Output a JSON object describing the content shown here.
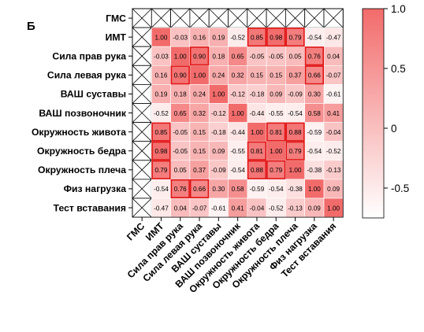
{
  "panel_label": "Б",
  "chart_data": {
    "type": "heatmap",
    "title": "",
    "xlabel": "",
    "ylabel": "",
    "row_labels": [
      "ГМС",
      "ИМТ",
      "Сила прав рука",
      "Сила левая рука",
      "ВАШ суставы",
      "ВАШ позвоночник",
      "Окружность живота",
      "Окружность бедра",
      "Окружность плеча",
      "Физ нагрузка",
      "Тест вставания"
    ],
    "col_labels": [
      "ГМС",
      "ИМТ",
      "Сила прав рука",
      "Сила левая рука",
      "ВАШ суставы",
      "ВАШ позвоночник",
      "Окружность живота",
      "Окружность бедра",
      "Окружность плеча",
      "Физ нагрузка",
      "Тест вставания"
    ],
    "values": [
      [
        null,
        null,
        null,
        null,
        null,
        null,
        null,
        null,
        null,
        null,
        null
      ],
      [
        null,
        1.0,
        -0.03,
        0.16,
        0.19,
        -0.52,
        0.85,
        0.98,
        0.79,
        -0.54,
        -0.47
      ],
      [
        null,
        -0.03,
        1.0,
        0.9,
        0.18,
        0.65,
        -0.05,
        -0.05,
        0.05,
        0.76,
        0.04
      ],
      [
        null,
        0.16,
        0.9,
        1.0,
        0.24,
        0.32,
        0.15,
        0.15,
        0.37,
        0.66,
        -0.07
      ],
      [
        null,
        0.19,
        0.18,
        0.24,
        1.0,
        -0.12,
        -0.18,
        0.09,
        -0.09,
        0.3,
        -0.61
      ],
      [
        null,
        -0.52,
        0.65,
        0.32,
        -0.12,
        1.0,
        -0.44,
        -0.55,
        -0.54,
        0.58,
        0.41
      ],
      [
        null,
        0.85,
        -0.05,
        0.15,
        -0.18,
        -0.44,
        1.0,
        0.81,
        0.88,
        -0.59,
        -0.04
      ],
      [
        null,
        0.98,
        -0.05,
        0.15,
        0.09,
        -0.55,
        0.81,
        1.0,
        0.79,
        -0.54,
        -0.52
      ],
      [
        null,
        0.79,
        0.05,
        0.37,
        -0.09,
        -0.54,
        0.88,
        0.79,
        1.0,
        -0.38,
        -0.13
      ],
      [
        null,
        -0.54,
        0.76,
        0.66,
        0.3,
        0.58,
        -0.59,
        -0.54,
        -0.38,
        1.0,
        0.09
      ],
      [
        null,
        -0.47,
        0.04,
        -0.07,
        -0.61,
        0.41,
        -0.04,
        -0.52,
        -0.13,
        0.09,
        1.0
      ]
    ],
    "cell_text": [
      [
        "",
        "",
        "",
        "",
        "",
        "",
        "",
        "",
        "",
        "",
        ""
      ],
      [
        "",
        "1.00",
        "-0.03",
        "0.16",
        "0.19",
        "-0.52",
        "0.85",
        "0.98",
        "0.79",
        "-0.54",
        "-0.47"
      ],
      [
        "",
        "-0.03",
        "1.00",
        "0.90",
        "0.18",
        "0.65",
        "-0.05",
        "-0.05",
        "0.05",
        "0.76",
        "0.04"
      ],
      [
        "",
        "0.16",
        "0.90",
        "1.00",
        "0.24",
        "0.32",
        "0.15",
        "0.15",
        "0.37",
        "0.66",
        "-0.07"
      ],
      [
        "",
        "0.19",
        "0.18",
        "0.24",
        "1.00",
        "-0.12",
        "-0.18",
        "0.09",
        "-0.09",
        "0.30",
        "-0.61"
      ],
      [
        "",
        "-0.52",
        "0.65",
        "0.32",
        "-0.12",
        "1.00",
        "-0.44",
        "-0.55",
        "-0.54",
        "0.58",
        "0.41"
      ],
      [
        "",
        "0.85",
        "-0.05",
        "0.15",
        "-0.18",
        "-0.44",
        "1.00",
        "0.81",
        "0.88",
        "-0.59",
        "-0.04"
      ],
      [
        "",
        "0.98",
        "-0.05",
        "0.15",
        "0.09",
        "-0.55",
        "0.81",
        "1.00",
        "0.79",
        "-0.54",
        "-0.52"
      ],
      [
        "",
        "0.79",
        "0.05",
        "0.37",
        "-0.09",
        "-0.54",
        "0.88",
        "0.79",
        "1.00",
        "-0.38",
        "-0.13"
      ],
      [
        "",
        "-0.54",
        "0.76",
        "0.66",
        "0.30",
        "0.58",
        "-0.59",
        "-0.54",
        "-0.38",
        "1.00",
        "0.09"
      ],
      [
        "",
        "-0.47",
        "0.04",
        "-0.07",
        "-0.61",
        "0.41",
        "-0.04",
        "-0.52",
        "-0.13",
        "0.09",
        "1.00"
      ]
    ],
    "missing_row": 0,
    "missing_col": 0,
    "highlighted_cells": [
      [
        1,
        6
      ],
      [
        1,
        7
      ],
      [
        1,
        8
      ],
      [
        2,
        3
      ],
      [
        2,
        9
      ],
      [
        3,
        2
      ],
      [
        3,
        9
      ],
      [
        6,
        1
      ],
      [
        6,
        7
      ],
      [
        6,
        8
      ],
      [
        7,
        1
      ],
      [
        7,
        6
      ],
      [
        7,
        8
      ],
      [
        8,
        1
      ],
      [
        8,
        6
      ],
      [
        8,
        7
      ],
      [
        9,
        2
      ],
      [
        9,
        3
      ]
    ],
    "colorbar": {
      "range": [
        -0.75,
        1.0
      ],
      "ticks": [
        1.0,
        0.5,
        0,
        -0.5
      ],
      "tick_labels": [
        "1.0",
        "0.5",
        "0",
        "-0.5"
      ],
      "color_low": "#ffffff",
      "color_high": "#f26b6b"
    },
    "highlight_color": "#e01515",
    "legend": "colorbar right",
    "grid": true
  }
}
